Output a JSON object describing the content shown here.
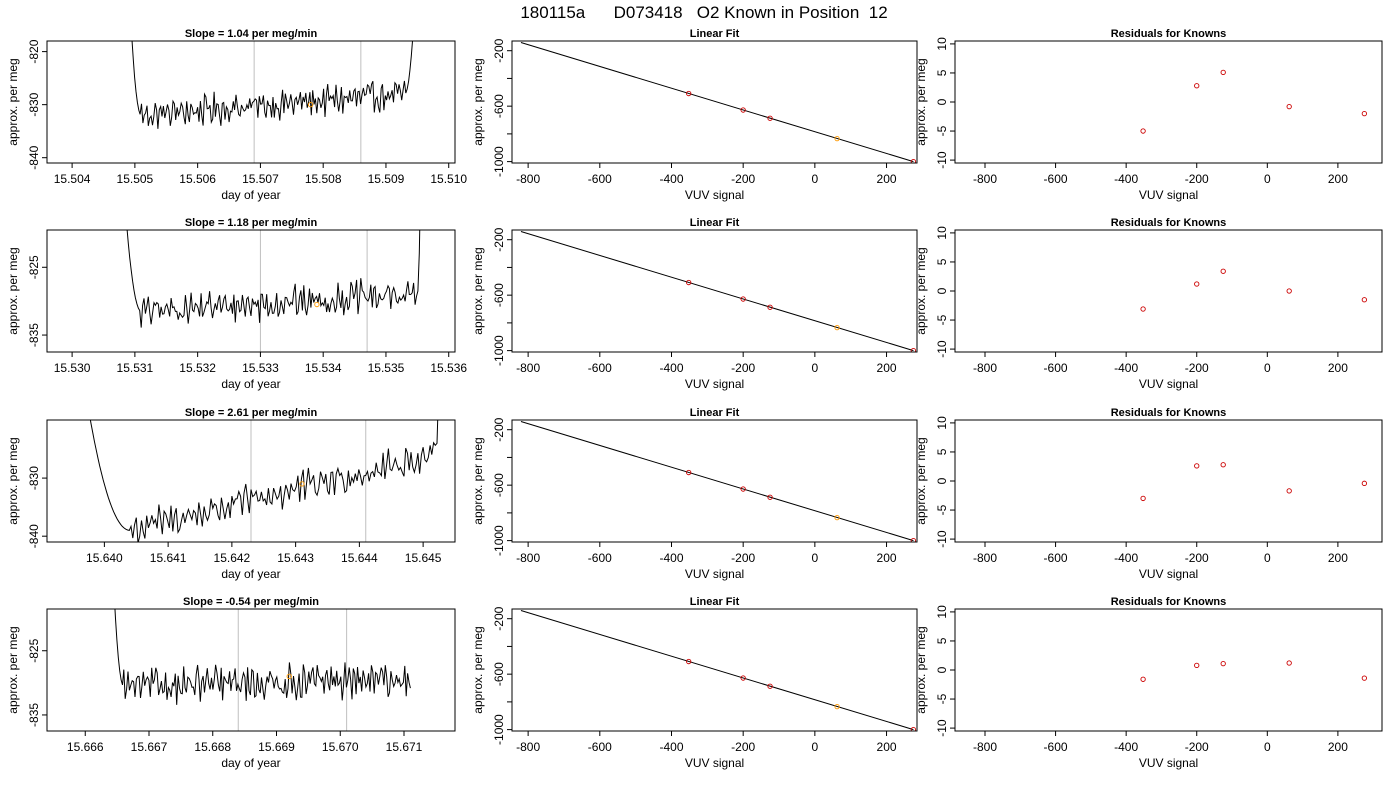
{
  "title": "180115a      D073418   O2 Known in Position  12",
  "colors": {
    "trace": "#000000",
    "vline": "#bfbfbf",
    "points": "#cc0000",
    "highlight": "#ff9900"
  },
  "chart_data": [
    {
      "type": "line",
      "row": 0,
      "title": "Slope =  1.04  per meg/min",
      "xlabel": "day of year",
      "ylabel": "approx. per meg",
      "xlim": [
        15.5036,
        15.5101
      ],
      "ylim": [
        -841,
        -818
      ],
      "xticks": [
        15.504,
        15.505,
        15.506,
        15.507,
        15.508,
        15.509,
        15.51
      ],
      "xtick_labels": [
        "15.504",
        "15.505",
        "15.506",
        "15.507",
        "15.508",
        "15.509",
        "15.510"
      ],
      "yticks": [
        -820,
        -830,
        -840
      ],
      "ytick_labels": [
        "-820",
        "-830",
        "-840"
      ],
      "vlines": [
        15.5069,
        15.5086
      ],
      "highlight": {
        "x": 15.5078,
        "y": -830
      },
      "trace": {
        "x_start": 15.5048,
        "x_end": 15.5096,
        "spike_start": 15.5051,
        "spike_end": 15.5093,
        "y_start": -832,
        "y_end": -828,
        "amp": 1.6
      },
      "points": [
        15.5048,
        15.50482,
        15.50485,
        15.5049,
        15.50495,
        15.505,
        15.50505,
        15.5051,
        15.50515,
        15.5052,
        15.50525,
        15.5053,
        15.50535,
        15.5054,
        15.50545,
        15.5055,
        15.50555,
        15.5056,
        15.50565,
        15.5057
      ]
    },
    {
      "type": "line",
      "row": 1,
      "title": "Slope =  1.18  per meg/min",
      "xlabel": "day of year",
      "ylabel": "approx. per meg",
      "xlim": [
        15.5296,
        15.5361
      ],
      "ylim": [
        -837.5,
        -819.5
      ],
      "xticks": [
        15.53,
        15.531,
        15.532,
        15.533,
        15.534,
        15.535,
        15.536
      ],
      "xtick_labels": [
        "15.530",
        "15.531",
        "15.532",
        "15.533",
        "15.534",
        "15.535",
        "15.536"
      ],
      "yticks": [
        -825,
        -835
      ],
      "ytick_labels": [
        "-825",
        "-835"
      ],
      "vlines": [
        15.533,
        15.5347
      ],
      "highlight": {
        "x": 15.5339,
        "y": -830.5
      },
      "trace": {
        "x_start": 15.5306,
        "x_end": 15.5356,
        "spike_start": 15.5311,
        "spike_end": 15.5355,
        "y_start": -831.5,
        "y_end": -829,
        "amp": 1.4
      }
    },
    {
      "type": "line",
      "row": 2,
      "title": "Slope =  2.61  per meg/min",
      "xlabel": "day of year",
      "ylabel": "approx. per meg",
      "xlim": [
        15.6391,
        15.6455
      ],
      "ylim": [
        -841,
        -820
      ],
      "xticks": [
        15.64,
        15.641,
        15.642,
        15.643,
        15.644,
        15.645
      ],
      "xtick_labels": [
        "15.640",
        "15.641",
        "15.642",
        "15.643",
        "15.644",
        "15.645"
      ],
      "yticks": [
        -830,
        -840
      ],
      "ytick_labels": [
        "-830",
        "-840"
      ],
      "vlines": [
        15.6423,
        15.6441
      ],
      "highlight": {
        "x": 15.6431,
        "y": -831
      },
      "trace": {
        "x_start": 15.6393,
        "x_end": 15.6453,
        "spike_start": 15.6404,
        "spike_end": 15.6452,
        "y_start": -839,
        "y_end": -826,
        "amp": 1.6
      }
    },
    {
      "type": "line",
      "row": 3,
      "title": "Slope =  -0.54  per meg/min",
      "xlabel": "day of year",
      "ylabel": "approx. per meg",
      "xlim": [
        15.6654,
        15.6718
      ],
      "ylim": [
        -837.5,
        -818.5
      ],
      "xticks": [
        15.666,
        15.667,
        15.668,
        15.669,
        15.67,
        15.671
      ],
      "xtick_labels": [
        "15.666",
        "15.667",
        "15.668",
        "15.669",
        "15.670",
        "15.671"
      ],
      "yticks": [
        -825,
        -835
      ],
      "ytick_labels": [
        "-825",
        "-835"
      ],
      "vlines": [
        15.6684,
        15.6701
      ],
      "highlight": {
        "x": 15.6692,
        "y": -829
      },
      "trace": {
        "x_start": 15.6663,
        "x_end": 15.6711,
        "spike_start": 15.6666,
        "spike_end": 15.6711,
        "y_start": -830.5,
        "y_end": -829.5,
        "amp": 1.5
      }
    },
    {
      "type": "scatter",
      "row": 0,
      "title": "Linear Fit",
      "xlabel": "VUV signal",
      "ylabel": "approx. per meg",
      "xlim": [
        -845,
        285
      ],
      "ylim": [
        -1010,
        -130
      ],
      "xticks": [
        -800,
        -600,
        -400,
        -200,
        0,
        200
      ],
      "xtick_labels": [
        "-800",
        "-600",
        "-400",
        "-200",
        "0",
        "200"
      ],
      "yticks": [
        -200,
        -400,
        -600,
        -800,
        -1000
      ],
      "ytick_labels": [
        "-200",
        "",
        "-600",
        "",
        "-1000"
      ],
      "line": {
        "x1": -820,
        "y1": -141,
        "x2": 275,
        "y2": -1000
      },
      "points": [
        {
          "x": -352,
          "y": -509
        },
        {
          "x": -200,
          "y": -628
        },
        {
          "x": -125,
          "y": -687
        },
        {
          "x": 62,
          "y": -834,
          "highlight": true
        },
        {
          "x": 275,
          "y": -1000
        }
      ]
    },
    {
      "type": "scatter",
      "row": 1,
      "title": "Linear Fit",
      "xlabel": "VUV signal",
      "ylabel": "approx. per meg",
      "xlim": [
        -845,
        285
      ],
      "ylim": [
        -1010,
        -130
      ],
      "xticks": [
        -800,
        -600,
        -400,
        -200,
        0,
        200
      ],
      "xtick_labels": [
        "-800",
        "-600",
        "-400",
        "-200",
        "0",
        "200"
      ],
      "yticks": [
        -200,
        -400,
        -600,
        -800,
        -1000
      ],
      "ytick_labels": [
        "-200",
        "",
        "-600",
        "",
        "-1000"
      ],
      "line": {
        "x1": -820,
        "y1": -141,
        "x2": 275,
        "y2": -1000
      },
      "points": [
        {
          "x": -352,
          "y": -509
        },
        {
          "x": -200,
          "y": -628
        },
        {
          "x": -125,
          "y": -687
        },
        {
          "x": 62,
          "y": -834,
          "highlight": true
        },
        {
          "x": 275,
          "y": -1000
        }
      ]
    },
    {
      "type": "scatter",
      "row": 2,
      "title": "Linear Fit",
      "xlabel": "VUV signal",
      "ylabel": "approx. per meg",
      "xlim": [
        -845,
        285
      ],
      "ylim": [
        -1010,
        -130
      ],
      "xticks": [
        -800,
        -600,
        -400,
        -200,
        0,
        200
      ],
      "xtick_labels": [
        "-800",
        "-600",
        "-400",
        "-200",
        "0",
        "200"
      ],
      "yticks": [
        -200,
        -400,
        -600,
        -800,
        -1000
      ],
      "ytick_labels": [
        "-200",
        "",
        "-600",
        "",
        "-1000"
      ],
      "line": {
        "x1": -820,
        "y1": -141,
        "x2": 275,
        "y2": -1000
      },
      "points": [
        {
          "x": -352,
          "y": -509
        },
        {
          "x": -200,
          "y": -628
        },
        {
          "x": -125,
          "y": -687
        },
        {
          "x": 62,
          "y": -834,
          "highlight": true
        },
        {
          "x": 275,
          "y": -1000
        }
      ]
    },
    {
      "type": "scatter",
      "row": 3,
      "title": "Linear Fit",
      "xlabel": "VUV signal",
      "ylabel": "approx. per meg",
      "xlim": [
        -845,
        285
      ],
      "ylim": [
        -1010,
        -130
      ],
      "xticks": [
        -800,
        -600,
        -400,
        -200,
        0,
        200
      ],
      "xtick_labels": [
        "-800",
        "-600",
        "-400",
        "-200",
        "0",
        "200"
      ],
      "yticks": [
        -200,
        -400,
        -600,
        -800,
        -1000
      ],
      "ytick_labels": [
        "-200",
        "",
        "-600",
        "",
        "-1000"
      ],
      "line": {
        "x1": -820,
        "y1": -141,
        "x2": 275,
        "y2": -1000
      },
      "points": [
        {
          "x": -352,
          "y": -509
        },
        {
          "x": -200,
          "y": -628
        },
        {
          "x": -125,
          "y": -687
        },
        {
          "x": 62,
          "y": -834,
          "highlight": true
        },
        {
          "x": 275,
          "y": -1000
        }
      ]
    },
    {
      "type": "scatter",
      "row": 0,
      "title": "Residuals for Knowns",
      "xlabel": "VUV signal",
      "ylabel": "approx. per meg",
      "xlim": [
        -885,
        325
      ],
      "ylim": [
        -10.5,
        10.5
      ],
      "xticks": [
        -800,
        -600,
        -400,
        -200,
        0,
        200
      ],
      "xtick_labels": [
        "-800",
        "-600",
        "-400",
        "-200",
        "0",
        "200"
      ],
      "yticks": [
        10,
        5,
        0,
        -5,
        -10
      ],
      "ytick_labels": [
        "10",
        "5",
        "0",
        "-5",
        "-10"
      ],
      "points": [
        {
          "x": -352,
          "y": -5.0
        },
        {
          "x": -200,
          "y": 2.8
        },
        {
          "x": -125,
          "y": 5.1
        },
        {
          "x": 62,
          "y": -0.8
        },
        {
          "x": 275,
          "y": -2.0
        }
      ]
    },
    {
      "type": "scatter",
      "row": 1,
      "title": "Residuals for Knowns",
      "xlabel": "VUV signal",
      "ylabel": "approx. per meg",
      "xlim": [
        -885,
        325
      ],
      "ylim": [
        -10.5,
        10.5
      ],
      "xticks": [
        -800,
        -600,
        -400,
        -200,
        0,
        200
      ],
      "xtick_labels": [
        "-800",
        "-600",
        "-400",
        "-200",
        "0",
        "200"
      ],
      "yticks": [
        10,
        5,
        0,
        -5,
        -10
      ],
      "ytick_labels": [
        "10",
        "5",
        "0",
        "-5",
        "-10"
      ],
      "points": [
        {
          "x": -352,
          "y": -3.1
        },
        {
          "x": -200,
          "y": 1.2
        },
        {
          "x": -125,
          "y": 3.4
        },
        {
          "x": 62,
          "y": 0.0
        },
        {
          "x": 275,
          "y": -1.5
        }
      ]
    },
    {
      "type": "scatter",
      "row": 2,
      "title": "Residuals for Knowns",
      "xlabel": "VUV signal",
      "ylabel": "approx. per meg",
      "xlim": [
        -885,
        325
      ],
      "ylim": [
        -10.5,
        10.5
      ],
      "xticks": [
        -800,
        -600,
        -400,
        -200,
        0,
        200
      ],
      "xtick_labels": [
        "-800",
        "-600",
        "-400",
        "-200",
        "0",
        "200"
      ],
      "yticks": [
        10,
        5,
        0,
        -5,
        -10
      ],
      "ytick_labels": [
        "10",
        "5",
        "0",
        "-5",
        "-10"
      ],
      "points": [
        {
          "x": -352,
          "y": -3.0
        },
        {
          "x": -200,
          "y": 2.6
        },
        {
          "x": -125,
          "y": 2.8
        },
        {
          "x": 62,
          "y": -1.7
        },
        {
          "x": 275,
          "y": -0.4
        }
      ]
    },
    {
      "type": "scatter",
      "row": 3,
      "title": "Residuals for Knowns",
      "xlabel": "VUV signal",
      "ylabel": "approx. per meg",
      "xlim": [
        -885,
        325
      ],
      "ylim": [
        -10.5,
        10.5
      ],
      "xticks": [
        -800,
        -600,
        -400,
        -200,
        0,
        200
      ],
      "xtick_labels": [
        "-800",
        "-600",
        "-400",
        "-200",
        "0",
        "200"
      ],
      "yticks": [
        10,
        5,
        0,
        -5,
        -10
      ],
      "ytick_labels": [
        "10",
        "5",
        "0",
        "-5",
        "-10"
      ],
      "points": [
        {
          "x": -352,
          "y": -1.6
        },
        {
          "x": -200,
          "y": 0.8
        },
        {
          "x": -125,
          "y": 1.1
        },
        {
          "x": 62,
          "y": 1.2
        },
        {
          "x": 275,
          "y": -1.4
        }
      ]
    }
  ]
}
